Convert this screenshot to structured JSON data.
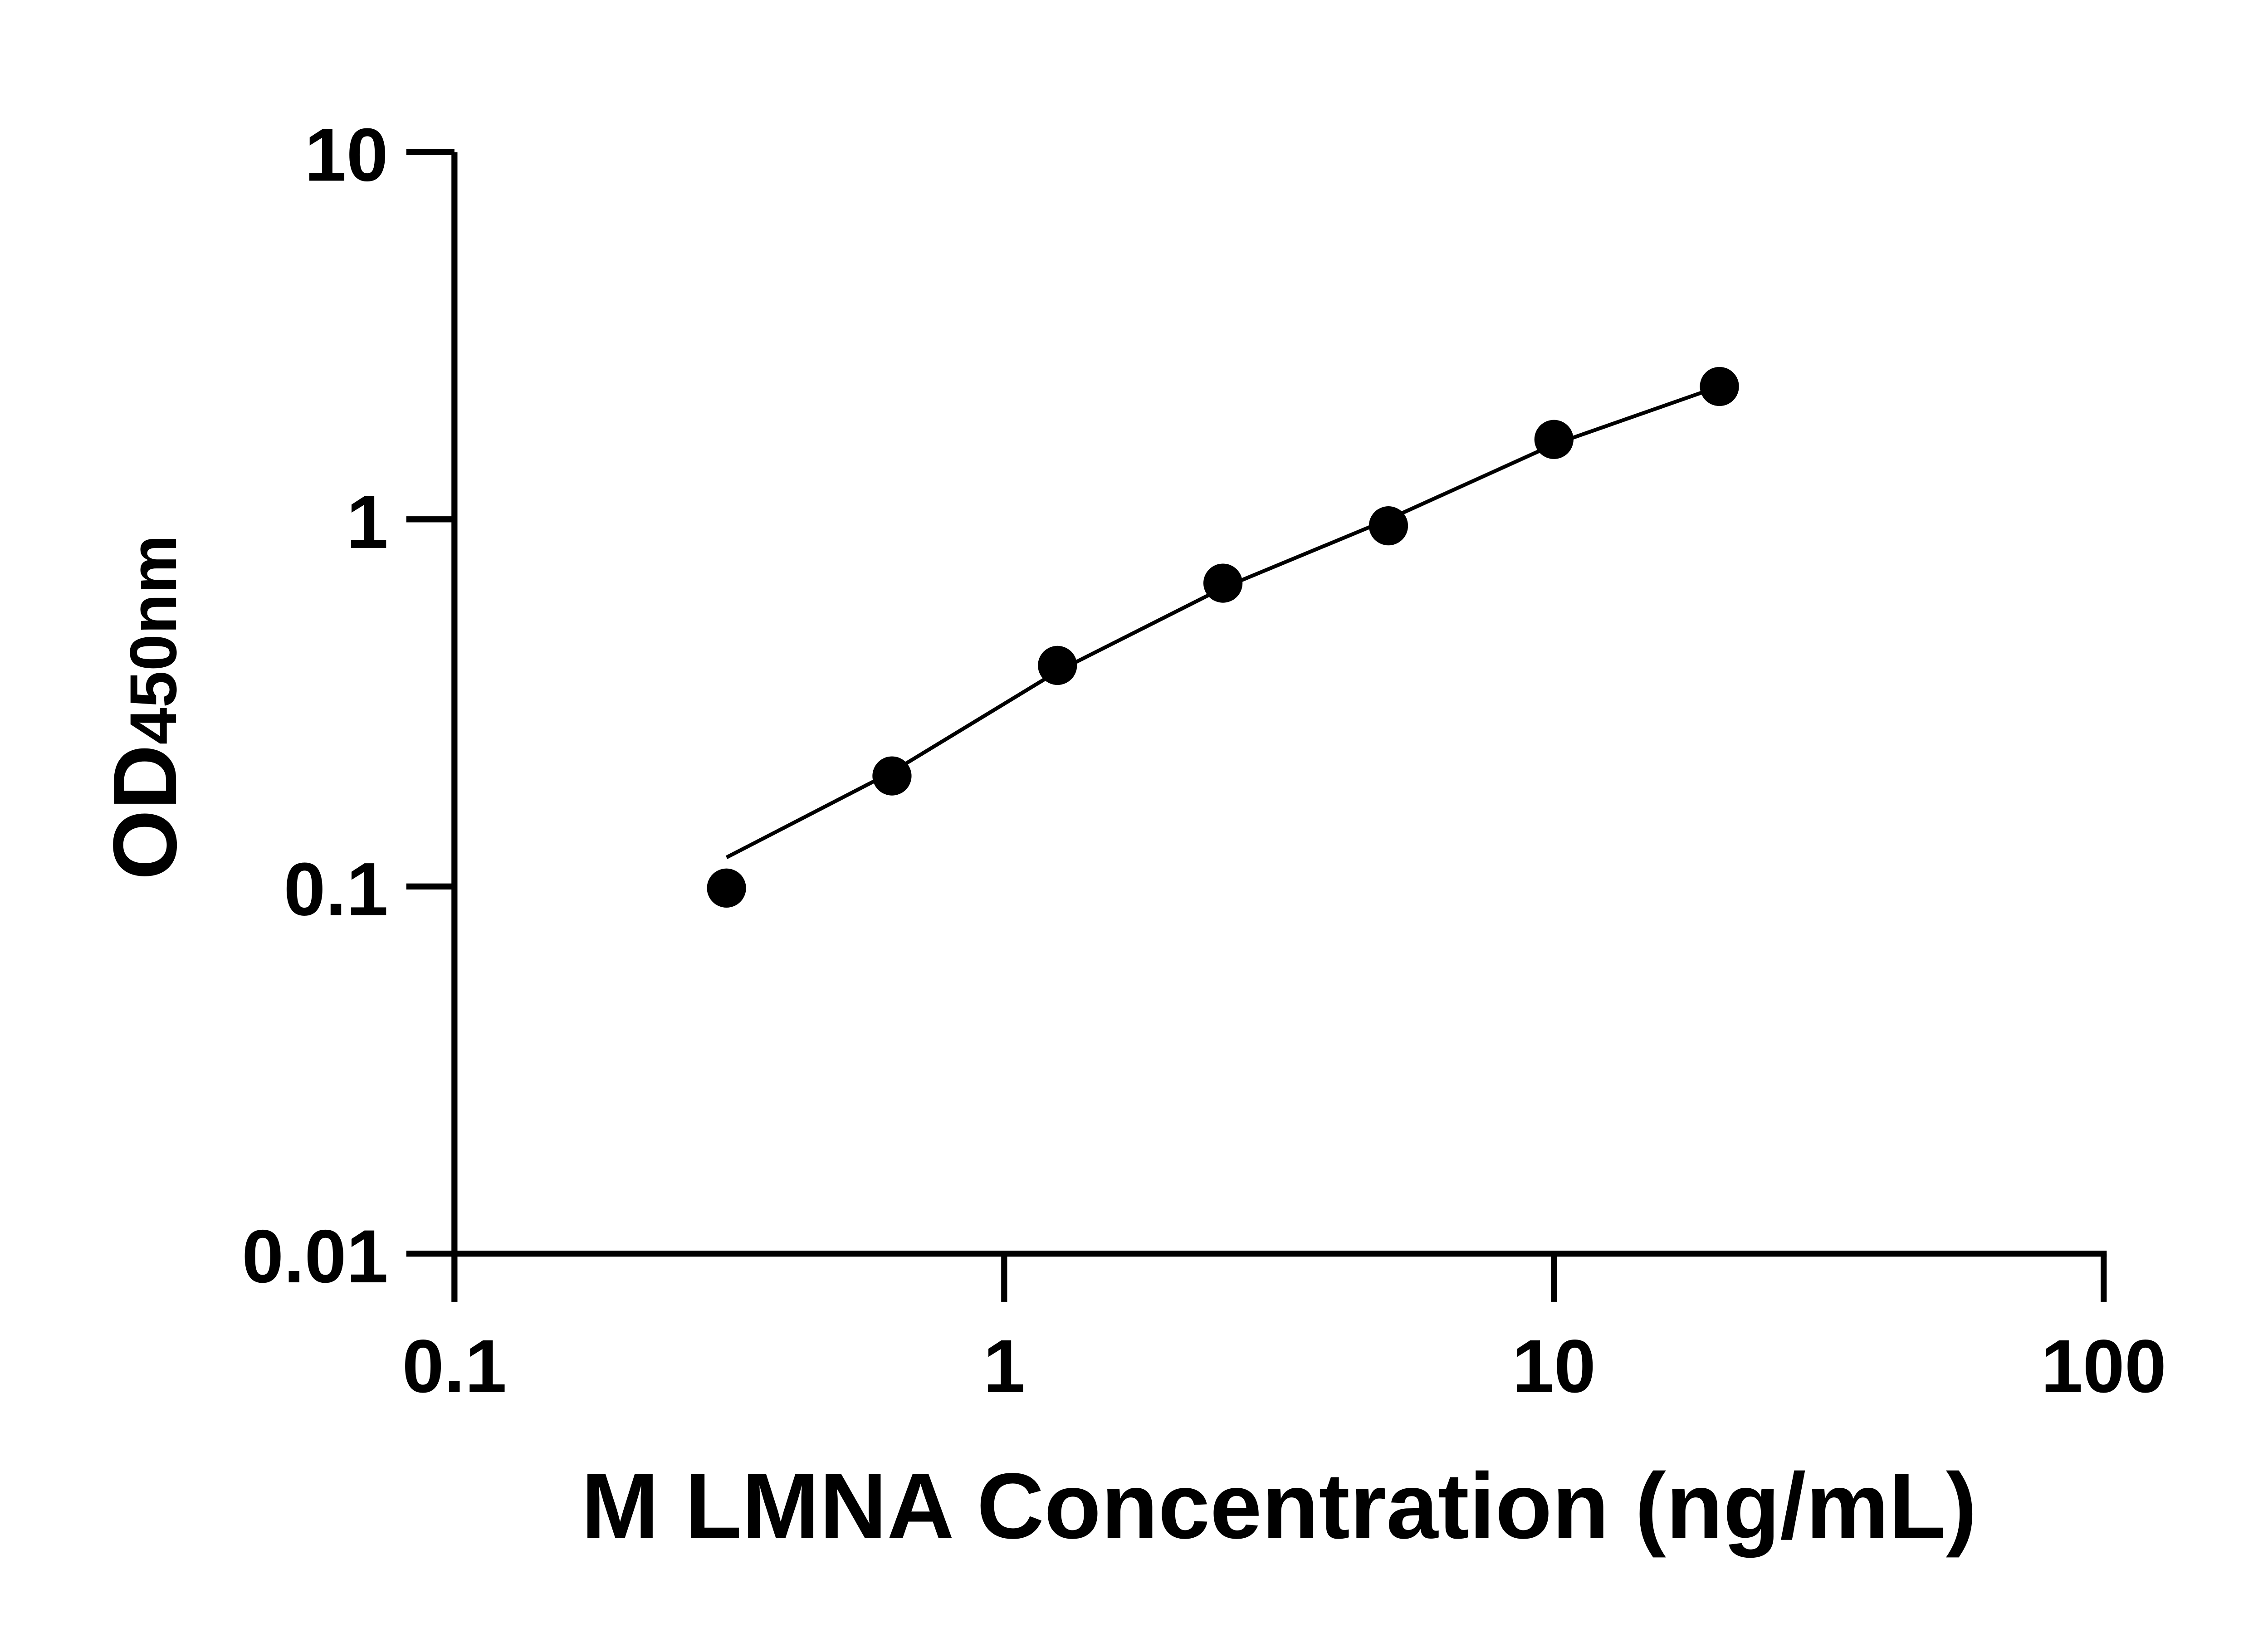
{
  "chart_data": {
    "type": "scatter",
    "title": "",
    "xlabel": "M LMNA Concentration (ng/mL)",
    "ylabel_main": "OD",
    "ylabel_sub": "450nm",
    "x_scale": "log",
    "y_scale": "log",
    "xlim": [
      0.1,
      100
    ],
    "ylim": [
      0.01,
      10
    ],
    "x_ticks": [
      "0.1",
      "1",
      "10",
      "100"
    ],
    "y_ticks": [
      "0.01",
      "0.1",
      "1",
      "10"
    ],
    "grid": false,
    "legend": "none",
    "series": [
      {
        "x": [
          0.3125,
          0.625,
          1.25,
          2.5,
          5,
          10,
          20
        ],
        "y": [
          0.099,
          0.2,
          0.4,
          0.67,
          0.96,
          1.65,
          2.3
        ]
      }
    ],
    "fit_curve": {
      "x": [
        0.3125,
        0.625,
        1.25,
        2.5,
        5,
        10,
        20
      ],
      "y": [
        0.12,
        0.205,
        0.385,
        0.65,
        1.0,
        1.6,
        2.3
      ]
    },
    "colors": {
      "marker": "#000000",
      "line": "#000000",
      "axis": "#000000"
    }
  }
}
